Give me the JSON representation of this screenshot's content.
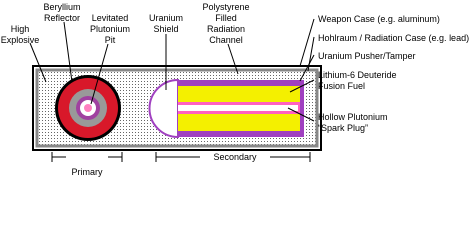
{
  "labels": {
    "high_explosive": [
      "High",
      "Explosive"
    ],
    "beryllium_reflector": [
      "Beryllium",
      "Reflector"
    ],
    "plutonium_pit": [
      "Levitated",
      "Plutonium",
      "Pit"
    ],
    "uranium_shield": [
      "Uranium",
      "Shield"
    ],
    "radiation_channel": [
      "Polystyrene",
      "Filled",
      "Radiation",
      "Channel"
    ],
    "weapon_case": [
      "Weapon Case (e.g. aluminum)"
    ],
    "hohlraum": [
      "Hohlraum / Radiation Case (e.g. lead)"
    ],
    "pusher": [
      "Uranium Pusher/Tamper"
    ],
    "fusion_fuel": [
      "Lithium-6 Deuteride",
      "Fusion Fuel"
    ],
    "spark_plug": [
      "Hollow Plutonium",
      "“Spark Plug”"
    ]
  },
  "sections": {
    "primary": "Primary",
    "secondary": "Secondary"
  }
}
